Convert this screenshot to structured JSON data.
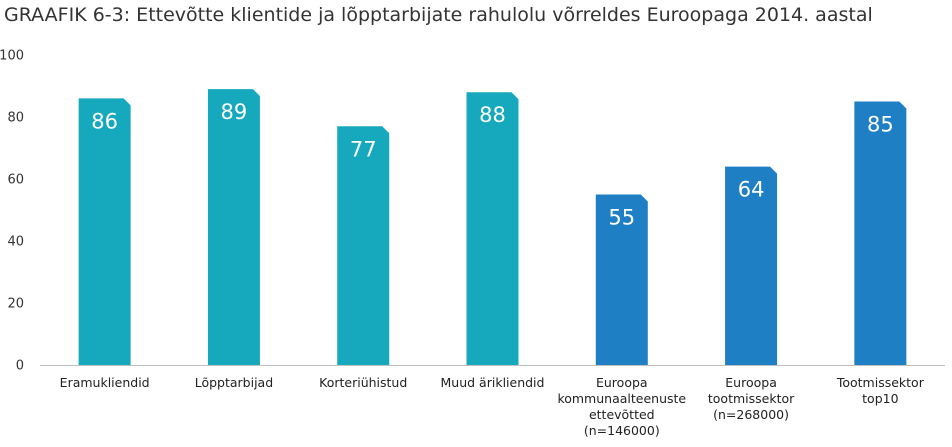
{
  "chart_data": {
    "type": "bar",
    "title": "GRAAFIK 6-3: Ettevõtte klientide ja lõpptarbijate rahulolu võrreldes Euroopaga 2014. aastal",
    "xlabel": "",
    "ylabel": "",
    "ylim": [
      0,
      100
    ],
    "yticks": [
      0,
      20,
      40,
      60,
      80,
      100
    ],
    "grid": false,
    "categories": [
      [
        "Eramukliendid"
      ],
      [
        "Lõpptarbijad"
      ],
      [
        "Korteriühistud"
      ],
      [
        "Muud ärikliendid"
      ],
      [
        "Euroopa",
        "kommunaalteenuste",
        "ettevõtted",
        "(n=146000)"
      ],
      [
        "Euroopa",
        "tootmissektor",
        "(n=268000)"
      ],
      [
        "Tootmissektor",
        "top10"
      ]
    ],
    "values": [
      86,
      89,
      77,
      88,
      55,
      64,
      85
    ],
    "colors": [
      "#16a9be",
      "#16a9be",
      "#16a9be",
      "#16a9be",
      "#1e7fc4",
      "#1e7fc4",
      "#1e7fc4"
    ]
  }
}
